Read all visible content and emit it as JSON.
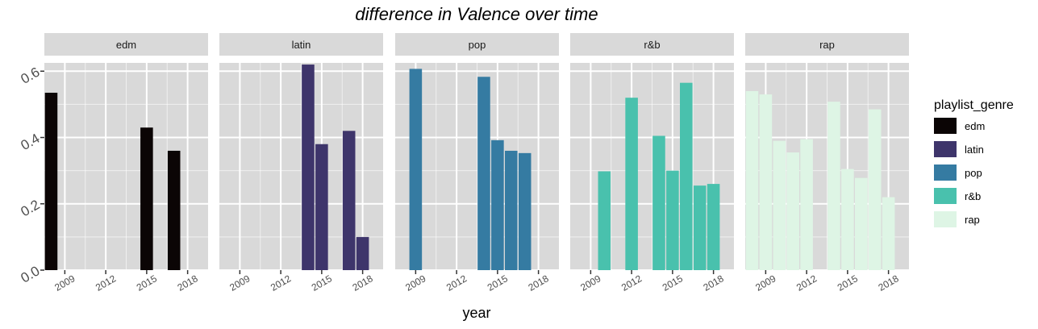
{
  "chart_data": {
    "type": "bar",
    "title": "difference in Valence over time",
    "xlabel": "year",
    "ylabel": "",
    "ylim": [
      0,
      0.625
    ],
    "xlim": [
      2007.5,
      2019.5
    ],
    "yticks": [
      "0.0",
      "0.2",
      "0.4",
      "0.6"
    ],
    "xticks": [
      "2009",
      "2012",
      "2015",
      "2018"
    ],
    "legend": {
      "title": "playlist_genre",
      "position": "right",
      "entries": [
        "edm",
        "latin",
        "pop",
        "r&b",
        "rap"
      ]
    },
    "colors": {
      "edm": "#0b0505",
      "latin": "#3e356b",
      "pop": "#357ba2",
      "r&b": "#49c1ad",
      "rap": "#def5e5",
      "panel_bg": "#d9d9d9",
      "strip_bg": "#d9d9d9",
      "grid": "#ffffff"
    },
    "panels": [
      {
        "name": "edm",
        "years": [
          2008,
          2015,
          2017
        ],
        "values": [
          0.535,
          0.43,
          0.36
        ]
      },
      {
        "name": "latin",
        "years": [
          2014,
          2015,
          2017,
          2018
        ],
        "values": [
          0.62,
          0.38,
          0.42,
          0.1
        ]
      },
      {
        "name": "pop",
        "years": [
          2009,
          2014,
          2015,
          2016,
          2017
        ],
        "values": [
          0.607,
          0.583,
          0.392,
          0.36,
          0.353
        ]
      },
      {
        "name": "r&b",
        "years": [
          2010,
          2012,
          2014,
          2015,
          2016,
          2017,
          2018
        ],
        "values": [
          0.298,
          0.52,
          0.405,
          0.3,
          0.565,
          0.255,
          0.26
        ]
      },
      {
        "name": "rap",
        "years": [
          2008,
          2009,
          2010,
          2011,
          2012,
          2014,
          2015,
          2016,
          2017,
          2018
        ],
        "values": [
          0.54,
          0.53,
          0.39,
          0.355,
          0.395,
          0.508,
          0.305,
          0.278,
          0.485,
          0.22
        ]
      }
    ]
  }
}
